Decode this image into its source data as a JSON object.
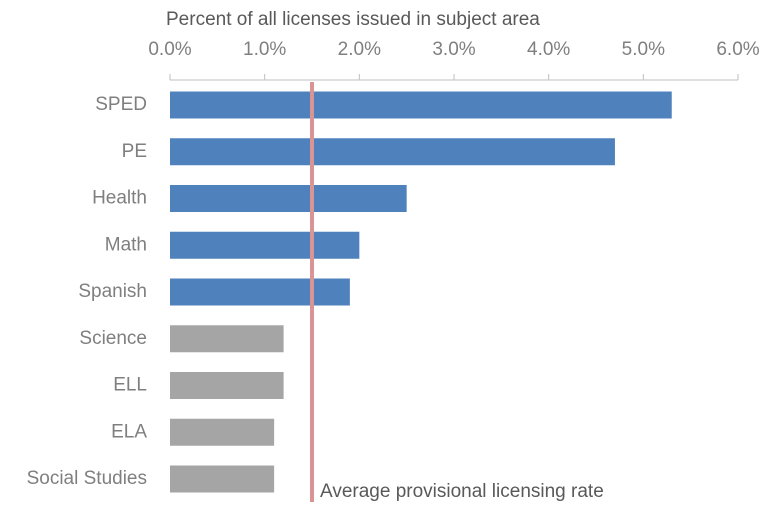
{
  "chart_data": {
    "type": "bar",
    "orientation": "horizontal",
    "xlabel": "Percent of all licenses issued in subject area",
    "categories": [
      "SPED",
      "PE",
      "Health",
      "Math",
      "Spanish",
      "Science",
      "ELL",
      "ELA",
      "Social Studies"
    ],
    "values": [
      5.3,
      4.7,
      2.5,
      2.0,
      1.9,
      1.2,
      1.2,
      1.1,
      1.1
    ],
    "colors": [
      "#4f81bd",
      "#4f81bd",
      "#4f81bd",
      "#4f81bd",
      "#4f81bd",
      "#a5a5a5",
      "#a5a5a5",
      "#a5a5a5",
      "#a5a5a5"
    ],
    "xlim": [
      0,
      6
    ],
    "xticks": [
      {
        "value": 0,
        "label": "0.0%"
      },
      {
        "value": 1,
        "label": "1.0%"
      },
      {
        "value": 2,
        "label": "2.0%"
      },
      {
        "value": 3,
        "label": "3.0%"
      },
      {
        "value": 4,
        "label": "4.0%"
      },
      {
        "value": 5,
        "label": "5.0%"
      },
      {
        "value": 6,
        "label": "6.0%"
      }
    ],
    "reference_line": {
      "value": 1.5,
      "label": "Average provisional licensing rate",
      "color": "#d99594"
    }
  }
}
